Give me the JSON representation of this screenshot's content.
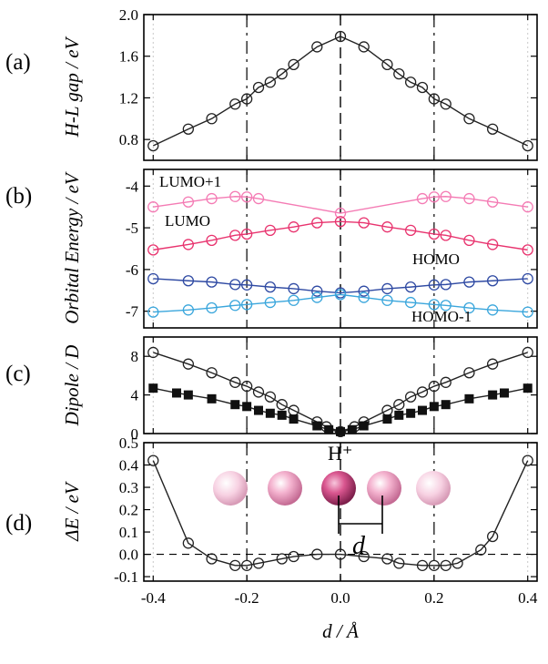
{
  "chart_data": [
    {
      "panel": "(a)",
      "type": "line",
      "ylabel": "H-L gap / eV",
      "ylim": [
        0.6,
        2.0
      ],
      "yticks": [
        "0.8",
        "1.2",
        "1.6",
        "2.0"
      ],
      "series": [
        {
          "color": "#222222",
          "marker": "open-circle",
          "x": [
            -0.4,
            -0.325,
            -0.275,
            -0.225,
            -0.2,
            -0.175,
            -0.15,
            -0.125,
            -0.1,
            -0.05,
            0.0,
            0.05,
            0.1,
            0.125,
            0.15,
            0.175,
            0.2,
            0.225,
            0.275,
            0.325,
            0.4
          ],
          "y": [
            0.74,
            0.9,
            1.0,
            1.14,
            1.19,
            1.3,
            1.35,
            1.43,
            1.52,
            1.69,
            1.79,
            1.69,
            1.52,
            1.43,
            1.35,
            1.3,
            1.19,
            1.14,
            1.0,
            0.9,
            0.74
          ]
        }
      ]
    },
    {
      "panel": "(b)",
      "type": "line",
      "ylabel": "Orbital Energy / eV",
      "ylim": [
        -7.4,
        -3.6
      ],
      "yticks": [
        "-4",
        "-5",
        "-6",
        "-7"
      ],
      "series": [
        {
          "name": "LUMO+1",
          "color": "#f47bb4",
          "marker": "open-circle",
          "x": [
            -0.4,
            -0.325,
            -0.275,
            -0.225,
            -0.2,
            -0.175,
            0.0,
            0.175,
            0.2,
            0.225,
            0.275,
            0.325,
            0.4
          ],
          "y": [
            -4.5,
            -4.38,
            -4.3,
            -4.25,
            -4.26,
            -4.3,
            -4.65,
            -4.3,
            -4.26,
            -4.25,
            -4.3,
            -4.38,
            -4.5
          ]
        },
        {
          "name": "LUMO",
          "color": "#e8336e",
          "marker": "open-circle",
          "x": [
            -0.4,
            -0.325,
            -0.275,
            -0.225,
            -0.2,
            -0.15,
            -0.1,
            -0.05,
            0.0,
            0.05,
            0.1,
            0.15,
            0.2,
            0.225,
            0.275,
            0.325,
            0.4
          ],
          "y": [
            -5.53,
            -5.4,
            -5.3,
            -5.18,
            -5.15,
            -5.06,
            -4.98,
            -4.88,
            -4.85,
            -4.88,
            -4.98,
            -5.06,
            -5.15,
            -5.18,
            -5.3,
            -5.4,
            -5.53
          ]
        },
        {
          "name": "HOMO",
          "color": "#2f4aa3",
          "marker": "open-circle",
          "x": [
            -0.4,
            -0.325,
            -0.275,
            -0.225,
            -0.2,
            -0.15,
            -0.1,
            -0.05,
            0.0,
            0.05,
            0.1,
            0.15,
            0.2,
            0.225,
            0.275,
            0.325,
            0.4
          ],
          "y": [
            -6.22,
            -6.27,
            -6.3,
            -6.36,
            -6.37,
            -6.42,
            -6.46,
            -6.52,
            -6.56,
            -6.52,
            -6.46,
            -6.42,
            -6.37,
            -6.36,
            -6.3,
            -6.27,
            -6.22
          ]
        },
        {
          "name": "HOMO-1",
          "color": "#3aa6dc",
          "marker": "open-circle",
          "x": [
            -0.4,
            -0.325,
            -0.275,
            -0.225,
            -0.2,
            -0.15,
            -0.1,
            -0.05,
            0.0,
            0.05,
            0.1,
            0.15,
            0.2,
            0.225,
            0.275,
            0.325,
            0.4
          ],
          "y": [
            -7.02,
            -6.97,
            -6.92,
            -6.86,
            -6.84,
            -6.79,
            -6.74,
            -6.67,
            -6.6,
            -6.67,
            -6.74,
            -6.79,
            -6.84,
            -6.86,
            -6.92,
            -6.97,
            -7.02
          ]
        }
      ]
    },
    {
      "panel": "(c)",
      "type": "line",
      "ylabel": "Dipole / D",
      "ylim": [
        0,
        10
      ],
      "yticks": [
        "0",
        "4",
        "8"
      ],
      "series": [
        {
          "color": "#222222",
          "marker": "open-circle",
          "x": [
            -0.4,
            -0.325,
            -0.275,
            -0.225,
            -0.2,
            -0.175,
            -0.15,
            -0.125,
            -0.1,
            -0.05,
            -0.03,
            0.0,
            0.03,
            0.05,
            0.1,
            0.125,
            0.15,
            0.175,
            0.2,
            0.225,
            0.275,
            0.325,
            0.4
          ],
          "y": [
            8.4,
            7.2,
            6.3,
            5.3,
            4.9,
            4.3,
            3.8,
            3.0,
            2.4,
            1.2,
            0.7,
            0.2,
            0.7,
            1.2,
            2.4,
            3.0,
            3.8,
            4.3,
            4.9,
            5.3,
            6.3,
            7.2,
            8.4
          ]
        },
        {
          "color": "#222222",
          "marker": "filled-square",
          "x": [
            -0.4,
            -0.35,
            -0.325,
            -0.275,
            -0.225,
            -0.2,
            -0.175,
            -0.15,
            -0.125,
            -0.1,
            -0.05,
            -0.025,
            0.0,
            0.025,
            0.05,
            0.1,
            0.125,
            0.15,
            0.175,
            0.2,
            0.225,
            0.275,
            0.325,
            0.35,
            0.4
          ],
          "y": [
            4.7,
            4.2,
            4.0,
            3.6,
            3.0,
            2.8,
            2.4,
            2.1,
            1.9,
            1.5,
            0.8,
            0.4,
            0.2,
            0.4,
            0.8,
            1.5,
            1.9,
            2.1,
            2.4,
            2.8,
            3.0,
            3.6,
            4.0,
            4.2,
            4.7
          ]
        }
      ]
    },
    {
      "panel": "(d)",
      "type": "line",
      "ylabel": "ΔE / eV",
      "xlabel": "d / Å",
      "ylim": [
        -0.12,
        0.5
      ],
      "xlim": [
        -0.42,
        0.42
      ],
      "yticks": [
        "-0.1",
        "0.0",
        "0.1",
        "0.2",
        "0.3",
        "0.4",
        "0.5"
      ],
      "xticks": [
        "-0.4",
        "-0.2",
        "0.0",
        "0.2",
        "0.4"
      ],
      "annotations": [
        "H⁺",
        "d"
      ],
      "series": [
        {
          "color": "#222222",
          "marker": "open-circle",
          "x": [
            -0.4,
            -0.325,
            -0.275,
            -0.225,
            -0.2,
            -0.175,
            -0.125,
            -0.1,
            -0.05,
            0.0,
            0.05,
            0.1,
            0.125,
            0.175,
            0.2,
            0.225,
            0.25,
            0.3,
            0.325,
            0.4
          ],
          "y": [
            0.42,
            0.05,
            -0.02,
            -0.05,
            -0.05,
            -0.04,
            -0.02,
            -0.01,
            0.0,
            0.0,
            -0.01,
            -0.02,
            -0.04,
            -0.05,
            -0.05,
            -0.05,
            -0.04,
            0.02,
            0.08,
            0.42
          ]
        }
      ]
    }
  ]
}
